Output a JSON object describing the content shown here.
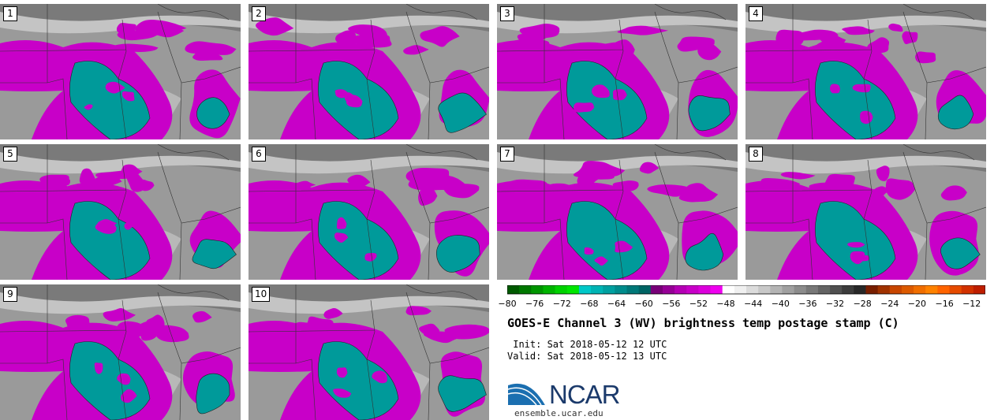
{
  "panels": [
    {
      "label": "1"
    },
    {
      "label": "2"
    },
    {
      "label": "3"
    },
    {
      "label": "4"
    },
    {
      "label": "5"
    },
    {
      "label": "6"
    },
    {
      "label": "7"
    },
    {
      "label": "8"
    },
    {
      "label": "9"
    },
    {
      "label": "10"
    }
  ],
  "colorbar": {
    "min": -80,
    "max": -10,
    "ticks": [
      "−80",
      "−76",
      "−72",
      "−68",
      "−64",
      "−60",
      "−56",
      "−52",
      "−48",
      "−44",
      "−40",
      "−36",
      "−32",
      "−28",
      "−24",
      "−20",
      "−16",
      "−12"
    ],
    "colors": [
      "#005a00",
      "#007800",
      "#009600",
      "#00b400",
      "#00d200",
      "#00e600",
      "#00c8c8",
      "#00b4b4",
      "#00a0a0",
      "#008c8c",
      "#007878",
      "#006464",
      "#780078",
      "#960096",
      "#b400b4",
      "#c800c8",
      "#dc00dc",
      "#f000f0",
      "#ffffff",
      "#f0f0f0",
      "#dcdcdc",
      "#c8c8c8",
      "#b4b4b4",
      "#a0a0a0",
      "#8c8c8c",
      "#787878",
      "#646464",
      "#505050",
      "#3c3c3c",
      "#282828",
      "#781e00",
      "#a03200",
      "#c84600",
      "#dc5a00",
      "#f06e00",
      "#ff8200",
      "#ff6400",
      "#e64b00",
      "#d23200",
      "#be1e00"
    ]
  },
  "title": "GOES-E Channel 3 (WV) brightness temp postage stamp (C)",
  "init": " Init: Sat 2018-05-12 12 UTC",
  "valid": "Valid: Sat 2018-05-12 13 UTC",
  "logo": {
    "text": "NCAR",
    "site": "ensemble.ucar.edu"
  },
  "colors": {
    "magenta": "#c800c8",
    "teal": "#009a9a",
    "gray_dark": "#7a7a7a",
    "gray_mid": "#9a9a9a",
    "gray_light": "#c4c4c4"
  }
}
